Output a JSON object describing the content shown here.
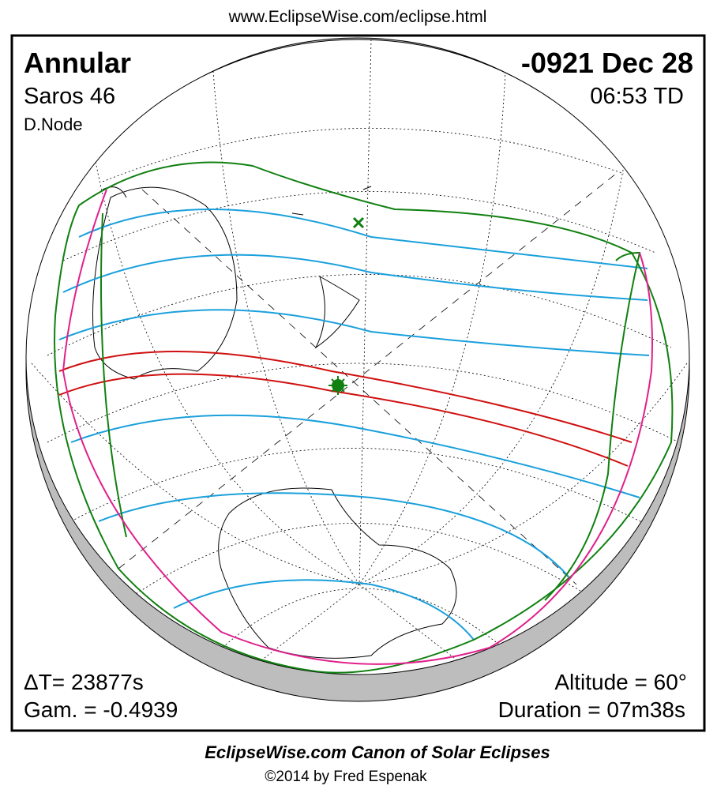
{
  "header": {
    "url": "www.EclipseWise.com/eclipse.html"
  },
  "panel": {
    "eclipse_type": "Annular",
    "saros": "Saros  46",
    "node": "D.Node",
    "date": "-0921 Dec 28",
    "time": "06:53 TD",
    "delta_t": "ΔT=  23877s",
    "gamma": "Gam. = -0.4939",
    "altitude": "Altitude = 60°",
    "duration": "Duration = 07m38s"
  },
  "footer": {
    "title": "EclipseWise.com Canon of Solar Eclipses",
    "credit": "©2014 by Fred Espenak"
  }
}
